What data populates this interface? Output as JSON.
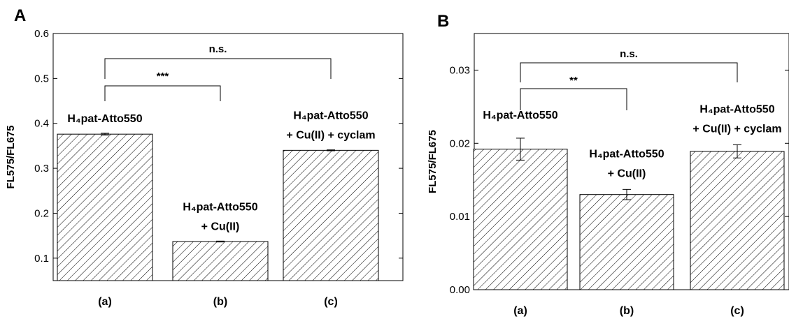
{
  "chart_data": [
    {
      "type": "bar",
      "panel": "A",
      "xlabel": "",
      "ylabel": "FL575/FL675",
      "ylim": [
        0.05,
        0.6
      ],
      "yticks": [
        "0.1",
        "0.2",
        "0.3",
        "0.4",
        "0.5",
        "0.6"
      ],
      "categories": [
        "(a)",
        "(b)",
        "(c)"
      ],
      "values": [
        0.376,
        0.137,
        0.34
      ],
      "errors": [
        0.002,
        0.001,
        0.001
      ],
      "bar_fill": "diagonal-hatch",
      "bar_labels": [
        [
          "H₄pat-Atto550"
        ],
        [
          "H₄pat-Atto550",
          "+ Cu(II)"
        ],
        [
          "H₄pat-Atto550",
          "+ Cu(II) + cyclam"
        ]
      ],
      "significance": [
        {
          "from": 0,
          "to": 1,
          "label": "***"
        },
        {
          "from": 0,
          "to": 2,
          "label": "n.s."
        }
      ]
    },
    {
      "type": "bar",
      "panel": "B",
      "xlabel": "",
      "ylabel": "FL575/FL675",
      "ylim": [
        0.0,
        0.035
      ],
      "yticks": [
        "0.00",
        "0.01",
        "0.02",
        "0.03"
      ],
      "categories": [
        "(a)",
        "(b)",
        "(c)"
      ],
      "values": [
        0.0192,
        0.013,
        0.0189
      ],
      "errors": [
        0.0015,
        0.0007,
        0.0009
      ],
      "bar_fill": "diagonal-hatch",
      "bar_labels": [
        [
          "H₄pat-Atto550"
        ],
        [
          "H₄pat-Atto550",
          "+ Cu(II)"
        ],
        [
          "H₄pat-Atto550",
          "+ Cu(II) + cyclam"
        ]
      ],
      "significance": [
        {
          "from": 0,
          "to": 1,
          "label": "**"
        },
        {
          "from": 0,
          "to": 2,
          "label": "n.s."
        }
      ]
    }
  ]
}
